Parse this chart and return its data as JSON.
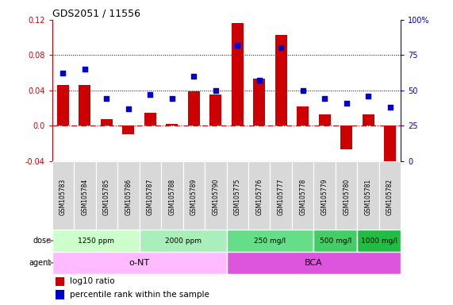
{
  "title": "GDS2051 / 11556",
  "samples": [
    "GSM105783",
    "GSM105784",
    "GSM105785",
    "GSM105786",
    "GSM105787",
    "GSM105788",
    "GSM105789",
    "GSM105790",
    "GSM105775",
    "GSM105776",
    "GSM105777",
    "GSM105778",
    "GSM105779",
    "GSM105780",
    "GSM105781",
    "GSM105782"
  ],
  "log10_ratio": [
    0.046,
    0.046,
    0.007,
    -0.01,
    0.015,
    0.002,
    0.039,
    0.035,
    0.116,
    0.053,
    0.103,
    0.022,
    0.013,
    -0.027,
    0.013,
    -0.052
  ],
  "perc_pct": [
    62,
    65,
    44,
    37,
    47,
    44,
    60,
    50,
    82,
    57,
    80,
    50,
    44,
    41,
    46,
    38
  ],
  "bar_color": "#cc0000",
  "dot_color": "#0000cc",
  "ylim_left": [
    -0.04,
    0.12
  ],
  "ylim_right": [
    0,
    100
  ],
  "yticks_left": [
    -0.04,
    0.0,
    0.04,
    0.08,
    0.12
  ],
  "yticks_right": [
    0,
    25,
    50,
    75,
    100
  ],
  "hlines": [
    0.04,
    0.08
  ],
  "zero_line_color": "#cc0000",
  "dose_groups": [
    {
      "label": "1250 ppm",
      "start": 0,
      "end": 4,
      "color": "#ccffcc"
    },
    {
      "label": "2000 ppm",
      "start": 4,
      "end": 8,
      "color": "#aaeebb"
    },
    {
      "label": "250 mg/l",
      "start": 8,
      "end": 12,
      "color": "#66dd88"
    },
    {
      "label": "500 mg/l",
      "start": 12,
      "end": 14,
      "color": "#44cc66"
    },
    {
      "label": "1000 mg/l",
      "start": 14,
      "end": 16,
      "color": "#22bb44"
    }
  ],
  "agent_groups": [
    {
      "label": "o-NT",
      "start": 0,
      "end": 8,
      "color": "#ffbbff"
    },
    {
      "label": "BCA",
      "start": 8,
      "end": 16,
      "color": "#dd55dd"
    }
  ],
  "legend_bar_label": "log10 ratio",
  "legend_dot_label": "percentile rank within the sample",
  "bg_color": "#ffffff",
  "grid_color": "#000000",
  "tick_label_color_left": "#cc0000",
  "tick_label_color_right": "#0000cc",
  "sample_bg": "#d8d8d8",
  "sample_border": "#ffffff"
}
